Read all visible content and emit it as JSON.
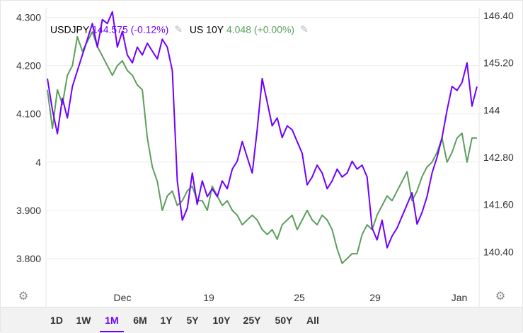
{
  "legend": {
    "usdjpy_symbol": "USDJPY",
    "usdjpy_value": "144.575 (-0.12%)",
    "us10y_symbol": "US 10Y",
    "us10y_value": "4.048 (+0.00%)"
  },
  "colors": {
    "usdjpy": "#6f00ff",
    "us10y": "#5c9e5c",
    "grid": "#ececec"
  },
  "icons": {
    "edit": "pencil-icon",
    "settings": "gear-icon"
  },
  "range_buttons": [
    "1D",
    "1W",
    "1M",
    "6M",
    "1Y",
    "5Y",
    "10Y",
    "25Y",
    "50Y",
    "All"
  ],
  "active_range": "1M",
  "chart_data": {
    "type": "line",
    "x_tick_labels": [
      "Dec",
      "19",
      "25",
      "29",
      "Jan"
    ],
    "left_axis": {
      "ticks": [
        "4.300",
        "4.200",
        "4.100",
        "4",
        "3.900",
        "3.800"
      ],
      "ylim": [
        3.7,
        4.32
      ]
    },
    "right_axis": {
      "ticks": [
        "146.40",
        "145.20",
        "144",
        "142.80",
        "141.60",
        "140.40"
      ],
      "ylim": [
        139.0,
        146.6
      ]
    },
    "grid": true,
    "legend_position": "top-left",
    "series": [
      {
        "name": "USDJPY",
        "axis": "right",
        "values": [
          144.8,
          144.0,
          143.4,
          144.3,
          143.8,
          144.6,
          145.0,
          145.4,
          145.8,
          146.2,
          145.6,
          146.3,
          146.2,
          146.5,
          145.6,
          146.0,
          145.4,
          145.2,
          145.6,
          145.4,
          145.7,
          145.5,
          145.3,
          145.8,
          145.6,
          145.0,
          142.2,
          141.2,
          141.5,
          142.4,
          141.6,
          142.2,
          141.8,
          142.0,
          141.8,
          142.2,
          142.0,
          142.5,
          142.7,
          143.2,
          142.8,
          142.4,
          143.5,
          144.8,
          144.2,
          143.6,
          143.8,
          143.3,
          143.6,
          143.5,
          143.2,
          142.9,
          142.1,
          142.3,
          142.6,
          142.4,
          142.0,
          142.2,
          142.5,
          142.3,
          142.4,
          142.7,
          142.5,
          142.6,
          142.3,
          141.0,
          140.7,
          141.2,
          140.5,
          140.8,
          141.0,
          141.3,
          141.6,
          141.9,
          141.1,
          141.4,
          141.8,
          142.4,
          142.8,
          143.3,
          144.0,
          144.6,
          144.5,
          144.7,
          145.2,
          144.1,
          144.6
        ]
      },
      {
        "name": "US 10Y",
        "axis": "left",
        "values": [
          4.15,
          4.07,
          4.15,
          4.12,
          4.18,
          4.2,
          4.26,
          4.23,
          4.25,
          4.27,
          4.24,
          4.22,
          4.2,
          4.18,
          4.2,
          4.21,
          4.19,
          4.18,
          4.16,
          4.15,
          4.05,
          3.99,
          3.96,
          3.9,
          3.93,
          3.94,
          3.91,
          3.92,
          3.94,
          3.95,
          3.92,
          3.92,
          3.9,
          3.95,
          3.93,
          3.91,
          3.92,
          3.9,
          3.89,
          3.87,
          3.88,
          3.89,
          3.88,
          3.86,
          3.85,
          3.86,
          3.84,
          3.87,
          3.88,
          3.89,
          3.86,
          3.88,
          3.9,
          3.88,
          3.87,
          3.89,
          3.88,
          3.86,
          3.82,
          3.79,
          3.8,
          3.81,
          3.81,
          3.85,
          3.87,
          3.86,
          3.89,
          3.91,
          3.93,
          3.92,
          3.94,
          3.96,
          3.98,
          3.92,
          3.94,
          3.97,
          3.99,
          4.0,
          4.02,
          4.05,
          4.0,
          4.02,
          4.05,
          4.06,
          4.0,
          4.05,
          4.05
        ]
      }
    ]
  }
}
